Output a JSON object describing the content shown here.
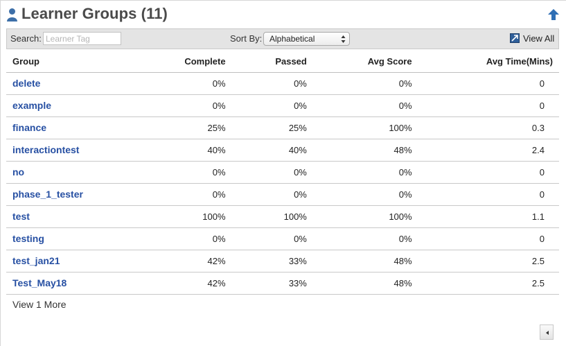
{
  "header": {
    "title": "Learner Groups (11)",
    "icon": "user-icon",
    "up_icon": "arrow-up-icon",
    "accent_color": "#2f6fb5"
  },
  "toolbar": {
    "search_label": "Search:",
    "search_placeholder": "Learner Tag",
    "search_value": "",
    "sort_label": "Sort By:",
    "sort_value": "Alphabetical",
    "view_all_label": "View All",
    "view_all_icon": "expand-icon"
  },
  "table": {
    "columns": [
      "Group",
      "Complete",
      "Passed",
      "Avg Score",
      "Avg Time(Mins)"
    ],
    "rows": [
      {
        "group": "delete",
        "complete": "0%",
        "passed": "0%",
        "avg_score": "0%",
        "avg_time": "0"
      },
      {
        "group": "example",
        "complete": "0%",
        "passed": "0%",
        "avg_score": "0%",
        "avg_time": "0"
      },
      {
        "group": "finance",
        "complete": "25%",
        "passed": "25%",
        "avg_score": "100%",
        "avg_time": "0.3"
      },
      {
        "group": "interactiontest",
        "complete": "40%",
        "passed": "40%",
        "avg_score": "48%",
        "avg_time": "2.4"
      },
      {
        "group": "no",
        "complete": "0%",
        "passed": "0%",
        "avg_score": "0%",
        "avg_time": "0"
      },
      {
        "group": "phase_1_tester",
        "complete": "0%",
        "passed": "0%",
        "avg_score": "0%",
        "avg_time": "0"
      },
      {
        "group": "test",
        "complete": "100%",
        "passed": "100%",
        "avg_score": "100%",
        "avg_time": "1.1"
      },
      {
        "group": "testing",
        "complete": "0%",
        "passed": "0%",
        "avg_score": "0%",
        "avg_time": "0"
      },
      {
        "group": "test_jan21",
        "complete": "42%",
        "passed": "33%",
        "avg_score": "48%",
        "avg_time": "2.5"
      },
      {
        "group": "Test_May18",
        "complete": "42%",
        "passed": "33%",
        "avg_score": "48%",
        "avg_time": "2.5"
      }
    ],
    "link_color": "#2750a3"
  },
  "footer": {
    "view_more_label": "View 1 More",
    "collapse_icon": "arrow-left-icon"
  }
}
